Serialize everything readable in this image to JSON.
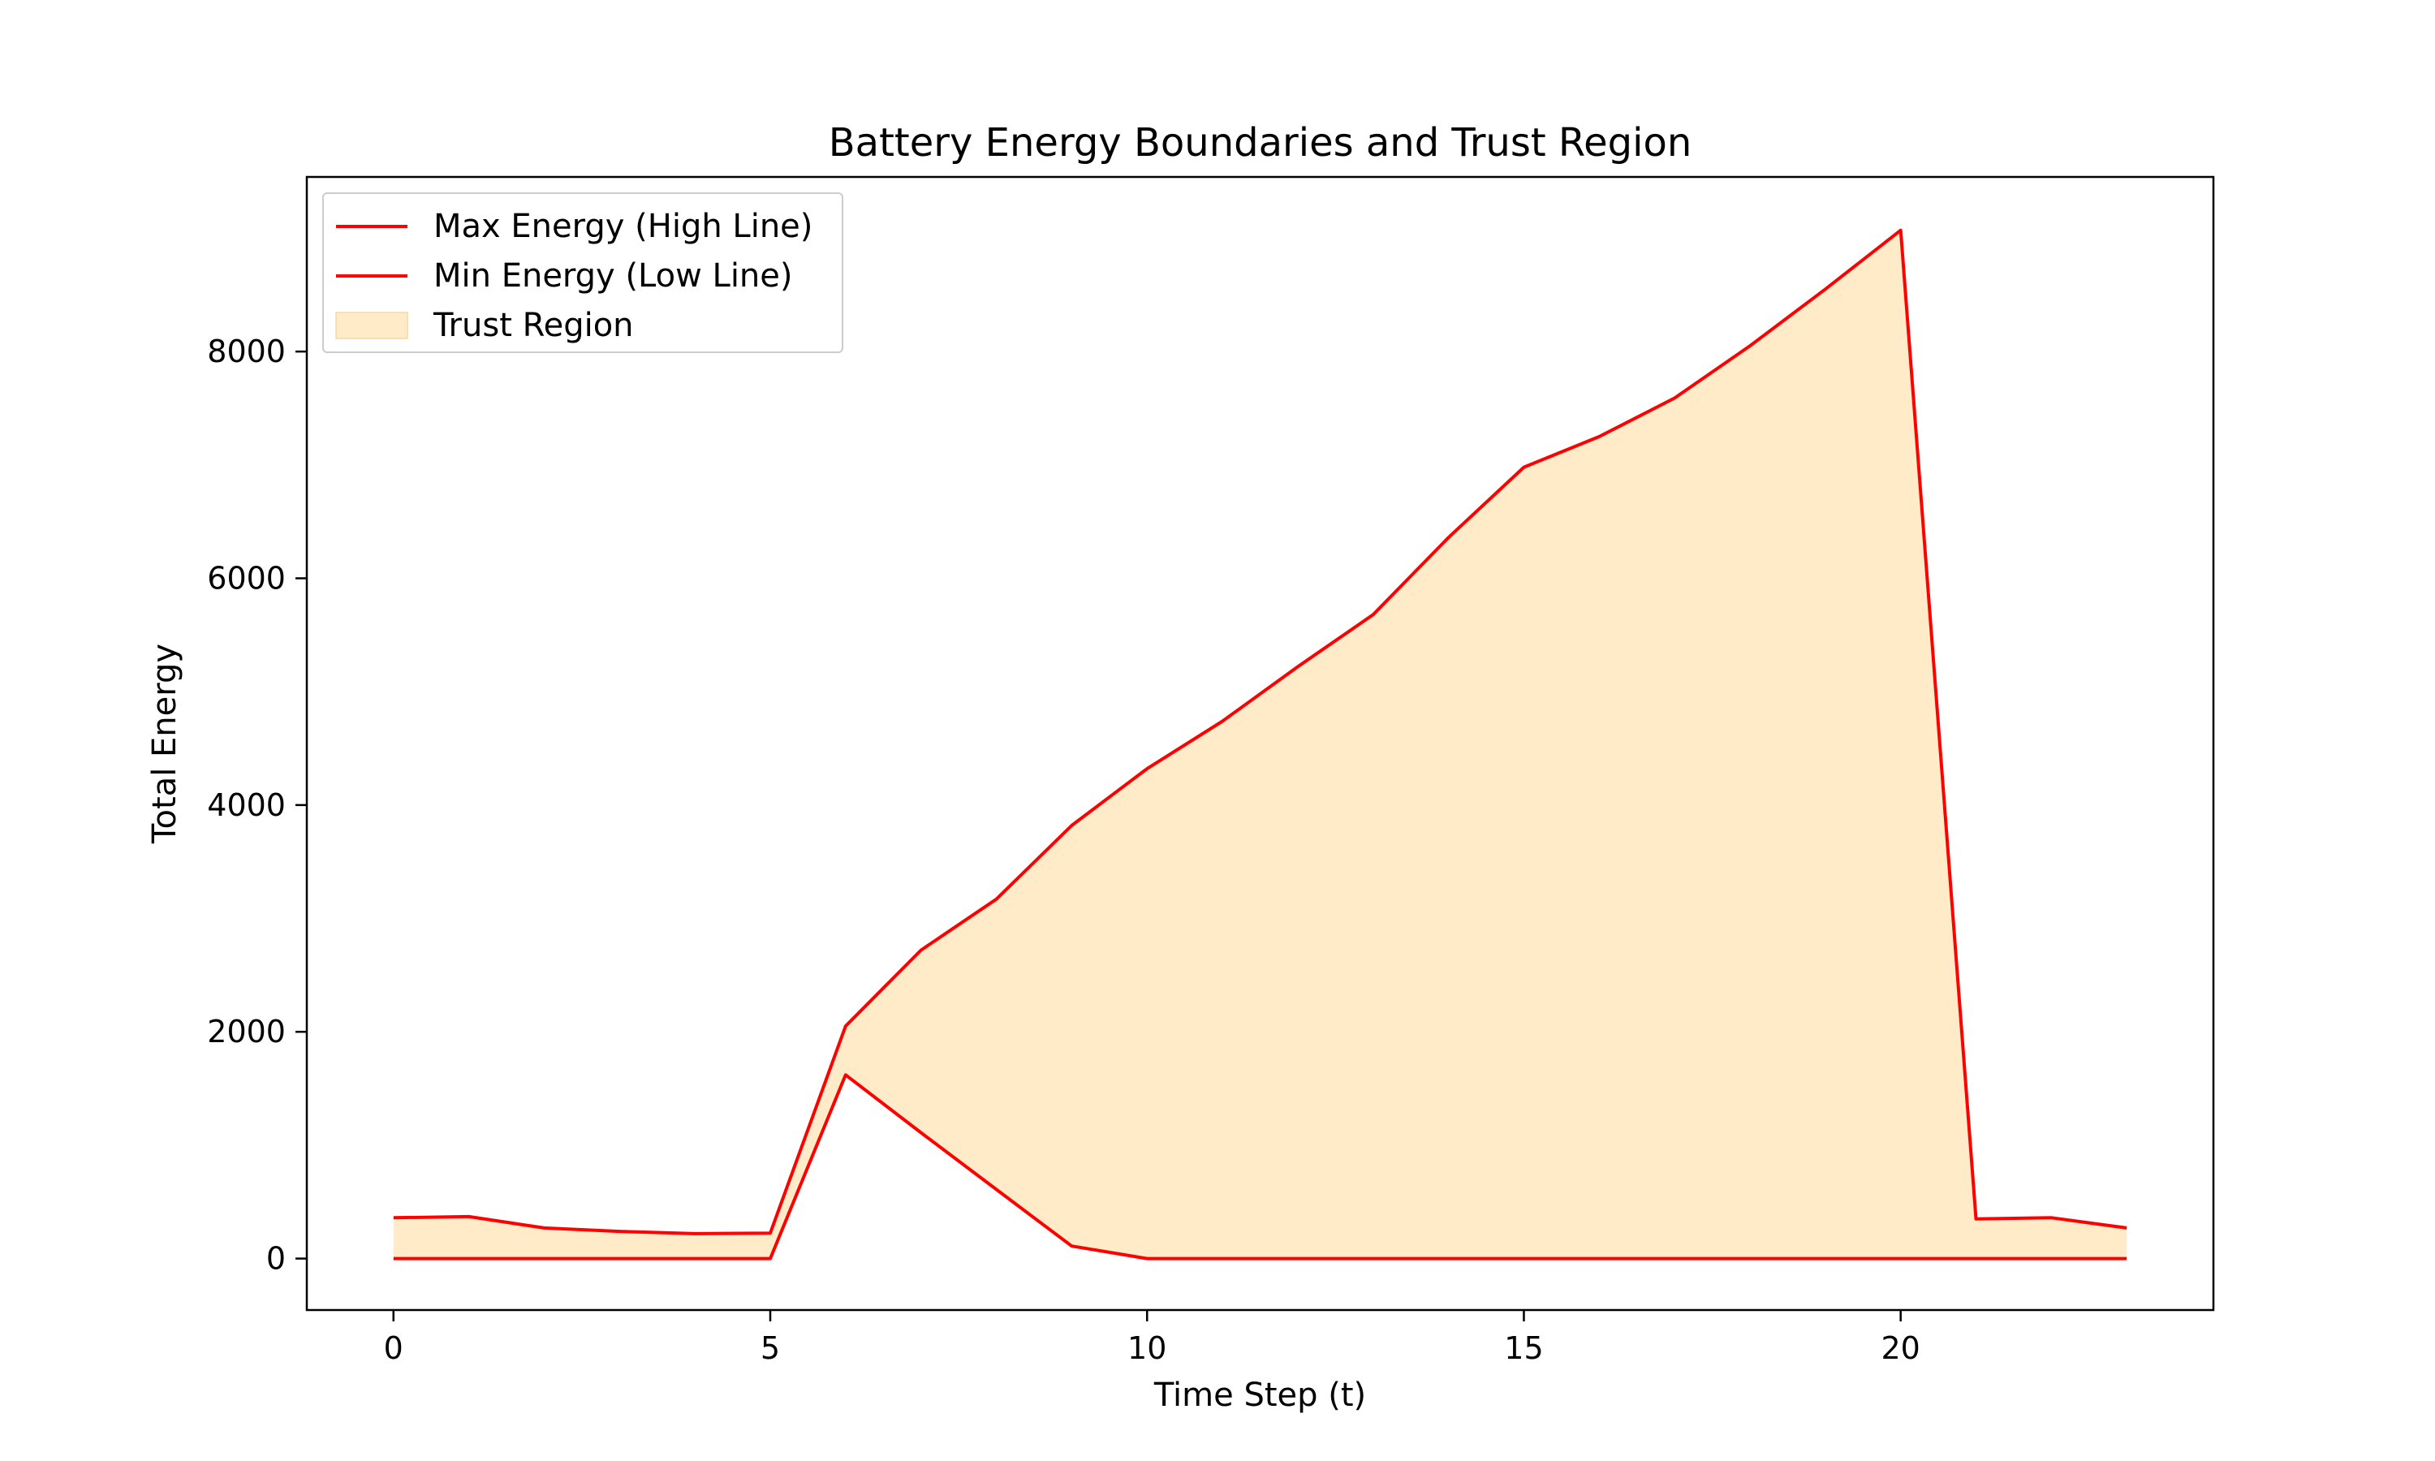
{
  "chart_data": {
    "type": "area",
    "title": "Battery Energy Boundaries and Trust Region",
    "xlabel": "Time Step (t)",
    "ylabel": "Total Energy",
    "xlim": [
      -1.15,
      24.15
    ],
    "ylim": [
      -454,
      9540
    ],
    "xticks": [
      0,
      5,
      10,
      15,
      20
    ],
    "yticks": [
      0,
      2000,
      4000,
      6000,
      8000
    ],
    "grid": false,
    "legend_position": "top-left",
    "x": [
      0,
      1,
      2,
      3,
      4,
      5,
      6,
      7,
      8,
      9,
      10,
      11,
      12,
      13,
      14,
      15,
      16,
      17,
      18,
      19,
      20,
      21,
      22,
      23
    ],
    "series": [
      {
        "name": "Max Energy (High Line)",
        "color": "#ff0000",
        "values": [
          360,
          370,
          270,
          240,
          220,
          225,
          2050,
          2720,
          3170,
          3820,
          4320,
          4740,
          5220,
          5680,
          6360,
          6980,
          7250,
          7590,
          8050,
          8550,
          9070,
          350,
          360,
          270
        ]
      },
      {
        "name": "Min Energy (Low Line)",
        "color": "#ff0000",
        "values": [
          0,
          0,
          0,
          0,
          0,
          0,
          1620,
          1110,
          610,
          110,
          0,
          0,
          0,
          0,
          0,
          0,
          0,
          0,
          0,
          0,
          0,
          0,
          0,
          0
        ]
      }
    ],
    "fill": {
      "name": "Trust Region",
      "color": "#ffebc8",
      "between": [
        "Max Energy (High Line)",
        "Min Energy (Low Line)"
      ]
    }
  }
}
